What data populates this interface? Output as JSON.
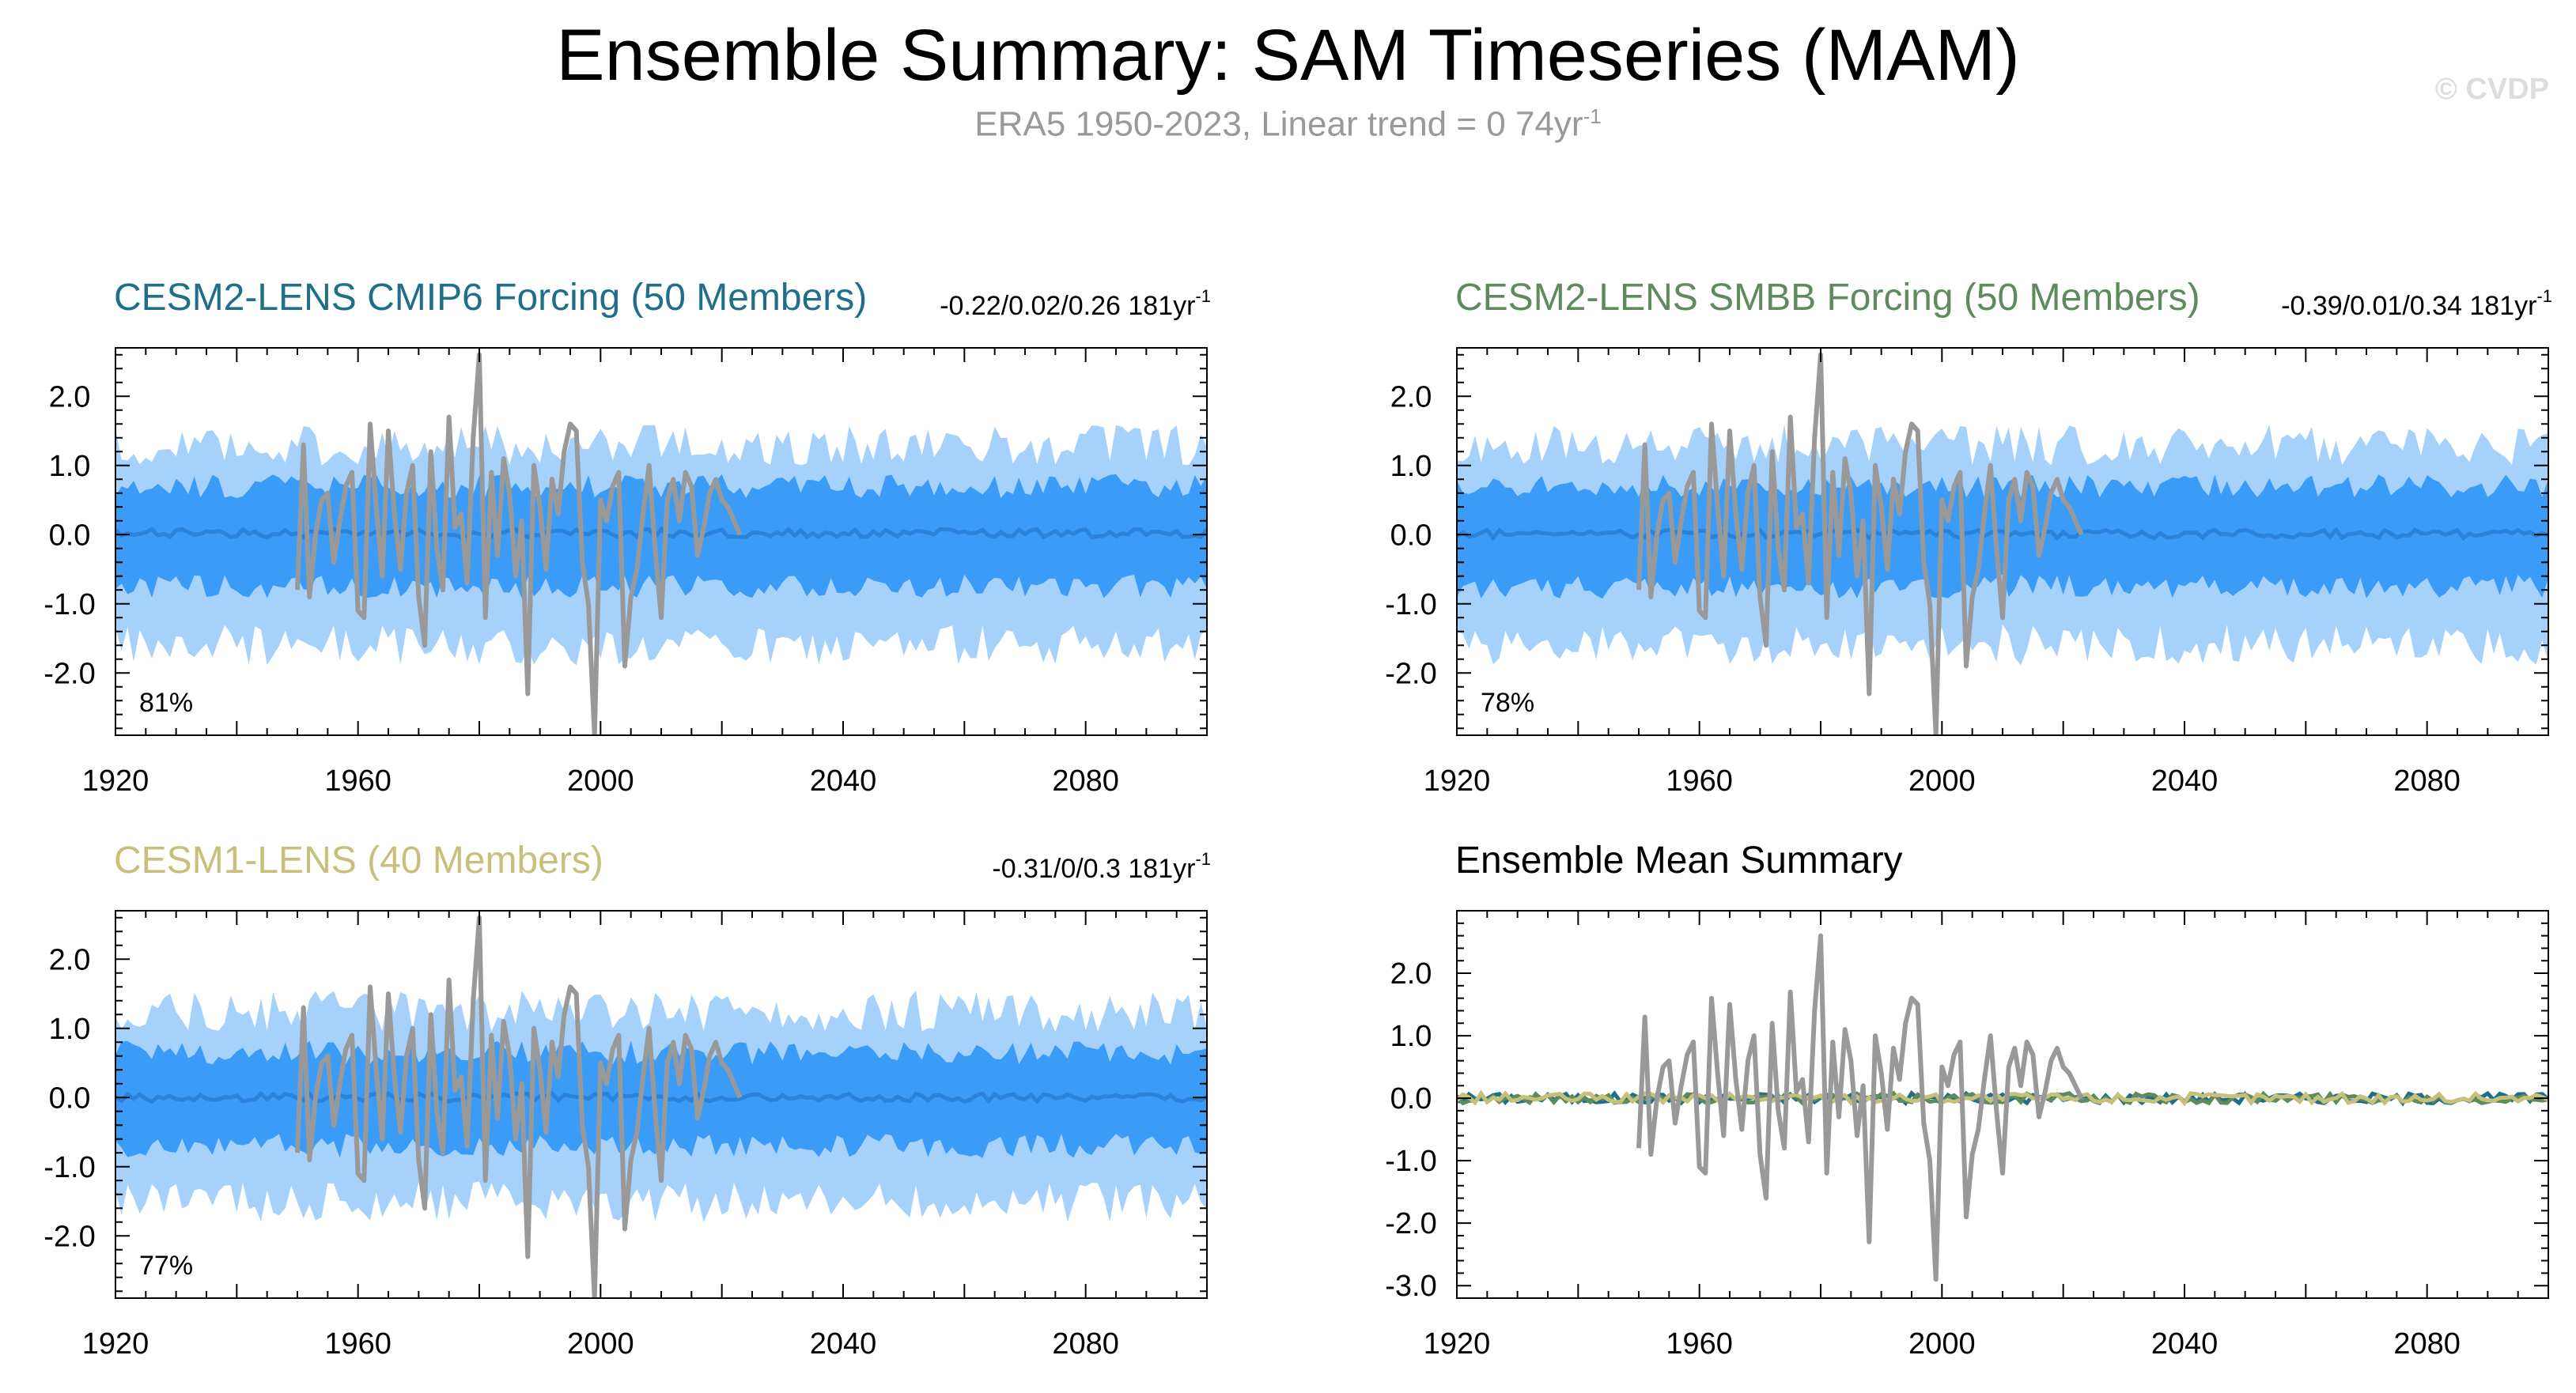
{
  "title": "Ensemble Summary: SAM Timeseries (MAM)",
  "subtitle_main": "ERA5 1950-2023, Linear trend = 0 74yr",
  "subtitle_sup": "-1",
  "watermark": "© CVDP",
  "colors": {
    "outer_band": "#a6d1fb",
    "inner_band": "#3a9cf6",
    "ensemble_mean": "#2b82d9",
    "obs": "#999999",
    "cesm2_cmip6": "#1f6f8b",
    "cesm2_smbb": "#5e8a5e",
    "cesm1": "#c7c07a"
  },
  "panels": [
    {
      "id": "cesm2-cmip6",
      "title": "CESM2-LENS CMIP6 Forcing (50 Members)",
      "title_color": "#1f6f8b",
      "trend": "-0.22/0.02/0.26 181yr",
      "trend_sup": "-1",
      "percent": "81%"
    },
    {
      "id": "cesm2-smbb",
      "title": "CESM2-LENS SMBB Forcing (50 Members)",
      "title_color": "#5e8a5e",
      "trend": "-0.39/0.01/0.34 181yr",
      "trend_sup": "-1",
      "percent": "78%"
    },
    {
      "id": "cesm1",
      "title": "CESM1-LENS (40 Members)",
      "title_color": "#c7c07a",
      "trend": "-0.31/0/0.3 181yr",
      "trend_sup": "-1",
      "percent": "77%"
    },
    {
      "id": "ensemble-mean",
      "title": "Ensemble Mean Summary",
      "title_color": "#000000",
      "trend": "",
      "trend_sup": "",
      "percent": ""
    }
  ],
  "chart_data": [
    {
      "type": "area",
      "panel": "cesm2-cmip6",
      "xlim": [
        1920,
        2100
      ],
      "ylim": [
        -2.9,
        2.7
      ],
      "x_ticks": [
        1920,
        1960,
        2000,
        2040,
        2080
      ],
      "y_ticks": [
        "2.0",
        "1.0",
        "0.0",
        "-1.0",
        "-2.0"
      ],
      "y_tick_values": [
        2,
        1,
        0,
        -1,
        -2
      ],
      "band_outer": [
        -1.6,
        1.3
      ],
      "band_inner": [
        -0.75,
        0.7
      ],
      "ensemble_mean": 0.02,
      "obs_series": "era5",
      "grid": false
    },
    {
      "type": "area",
      "panel": "cesm2-smbb",
      "xlim": [
        1920,
        2100
      ],
      "ylim": [
        -2.9,
        2.7
      ],
      "x_ticks": [
        1920,
        1960,
        2000,
        2040,
        2080
      ],
      "y_ticks": [
        "2.0",
        "1.0",
        "0.0",
        "-1.0",
        "-2.0"
      ],
      "y_tick_values": [
        2,
        1,
        0,
        -1,
        -2
      ],
      "band_outer": [
        -1.6,
        1.3
      ],
      "band_inner": [
        -0.75,
        0.7
      ],
      "ensemble_mean": 0.01,
      "obs_series": "era5",
      "grid": false
    },
    {
      "type": "area",
      "panel": "cesm1",
      "xlim": [
        1920,
        2100
      ],
      "ylim": [
        -2.9,
        2.7
      ],
      "x_ticks": [
        1920,
        1960,
        2000,
        2040,
        2080
      ],
      "y_ticks": [
        "2.0",
        "1.0",
        "0.0",
        "-1.0",
        "-2.0"
      ],
      "y_tick_values": [
        2,
        1,
        0,
        -1,
        -2
      ],
      "band_outer": [
        -1.5,
        1.25
      ],
      "band_inner": [
        -0.7,
        0.65
      ],
      "ensemble_mean": 0.0,
      "obs_series": "era5",
      "grid": false
    },
    {
      "type": "line",
      "panel": "ensemble-mean",
      "xlim": [
        1920,
        2100
      ],
      "ylim": [
        -3.2,
        3.0
      ],
      "x_ticks": [
        1920,
        1960,
        2000,
        2040,
        2080
      ],
      "y_ticks": [
        "2.0",
        "1.0",
        "0.0",
        "-1.0",
        "-2.0",
        "-3.0"
      ],
      "y_tick_values": [
        2,
        1,
        0,
        -1,
        -2,
        -3
      ],
      "obs_series": "era5",
      "grid": false
    }
  ],
  "era5_obs": {
    "x_start": 1950,
    "values": [
      -0.8,
      1.3,
      -0.9,
      0.0,
      0.5,
      0.6,
      -0.4,
      0.2,
      0.7,
      0.9,
      -1.1,
      -1.2,
      1.6,
      0.4,
      -0.6,
      1.5,
      0.3,
      -0.5,
      0.6,
      1.0,
      -0.9,
      -1.6,
      1.2,
      -0.2,
      -0.8,
      1.7,
      0.1,
      0.3,
      -0.7,
      1.4,
      2.6,
      -1.2,
      0.9,
      -0.3,
      1.1,
      0.6,
      -0.6,
      0.2,
      -2.3,
      1.0,
      0.4,
      -0.5,
      0.8,
      0.3,
      1.2,
      1.6,
      1.5,
      -0.4,
      -1.0,
      -2.9,
      0.5,
      0.2,
      0.7,
      0.9,
      -1.9,
      -0.9,
      -0.5,
      0.3,
      1.0,
      -0.2,
      -1.2,
      0.5,
      0.8,
      0.2,
      0.9,
      0.7,
      -0.3,
      0.1,
      0.6,
      0.8,
      0.5,
      0.4,
      0.2,
      0.0
    ]
  }
}
